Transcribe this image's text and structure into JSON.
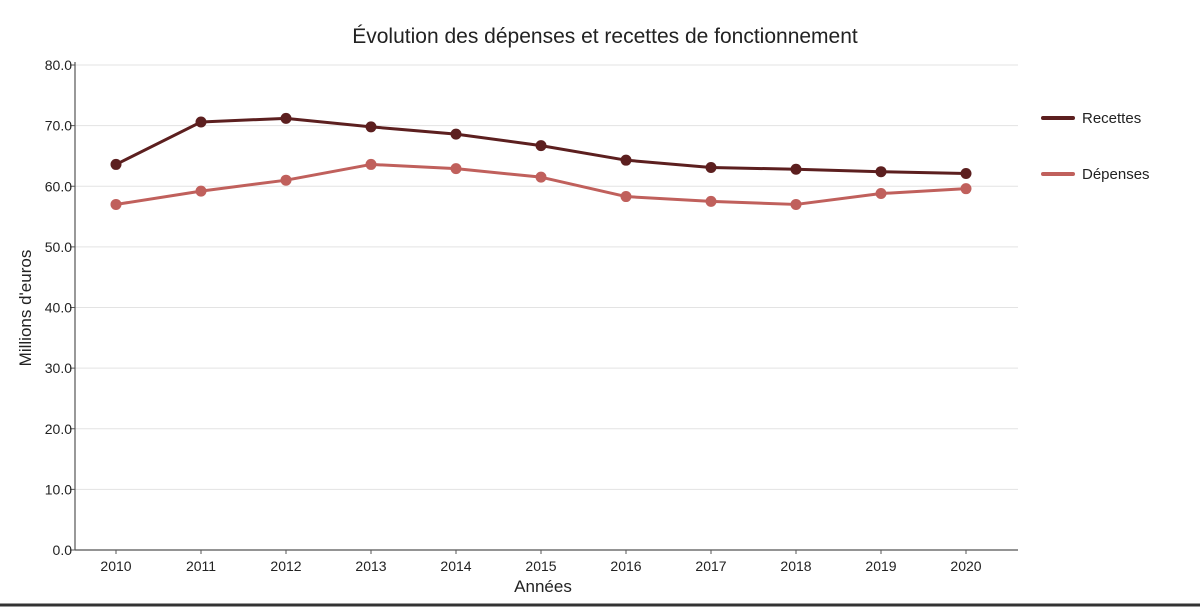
{
  "chart_data": {
    "type": "line",
    "title": "Évolution des dépenses et recettes de fonctionnement",
    "xlabel": "Années",
    "ylabel": "Millions d'euros",
    "ylim": [
      0,
      80
    ],
    "yticks": [
      "0.0",
      "10.0",
      "20.0",
      "30.0",
      "40.0",
      "50.0",
      "60.0",
      "70.0",
      "80.0"
    ],
    "categories": [
      "2010",
      "2011",
      "2012",
      "2013",
      "2014",
      "2015",
      "2016",
      "2017",
      "2018",
      "2019",
      "2020"
    ],
    "series": [
      {
        "name": "Recettes",
        "color": "#5c1f1f",
        "values": [
          63.6,
          70.6,
          71.2,
          69.8,
          68.6,
          66.7,
          64.3,
          63.1,
          62.8,
          62.4,
          62.1
        ]
      },
      {
        "name": "Dépenses",
        "color": "#c0605c",
        "values": [
          57.0,
          59.2,
          61.0,
          63.6,
          62.9,
          61.5,
          58.3,
          57.5,
          57.0,
          58.8,
          59.6
        ]
      }
    ],
    "grid": true,
    "legend_position": "right"
  }
}
